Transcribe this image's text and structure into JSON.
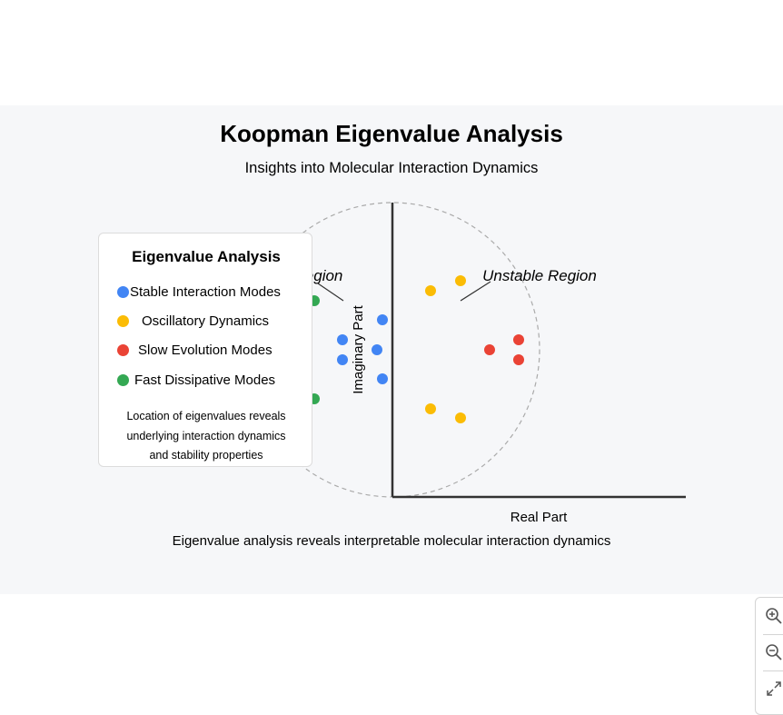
{
  "header": {
    "title": "Koopman Eigenvalue Analysis",
    "subtitle": "Insights into Molecular Interaction Dynamics"
  },
  "axes": {
    "x_label": "Real Part",
    "y_label": "Imaginary Part"
  },
  "region_labels": {
    "stable": "Stable Region",
    "unstable": "Unstable Region"
  },
  "legend": {
    "title": "Eigenvalue Analysis",
    "items": [
      {
        "label": "Stable Interaction Modes",
        "color": "#4285f4"
      },
      {
        "label": "Oscillatory Dynamics",
        "color": "#fbbc05"
      },
      {
        "label": "Slow Evolution Modes",
        "color": "#ea4335"
      },
      {
        "label": "Fast Dissipative Modes",
        "color": "#34a853"
      }
    ],
    "note_lines": [
      "Location of eigenvalues reveals",
      "underlying interaction dynamics",
      "and stability properties"
    ]
  },
  "footer": {
    "text": "Eigenvalue analysis reveals interpretable molecular interaction dynamics"
  },
  "colors": {
    "stable": "#4285f4",
    "oscillatory": "#fbbc05",
    "slow": "#ea4335",
    "fast": "#34a853",
    "axis": "#333333",
    "circle": "#aaaaaa"
  },
  "toolbar": {
    "icons": [
      "zoom-in-icon",
      "zoom-out-icon",
      "expand-icon"
    ]
  }
}
